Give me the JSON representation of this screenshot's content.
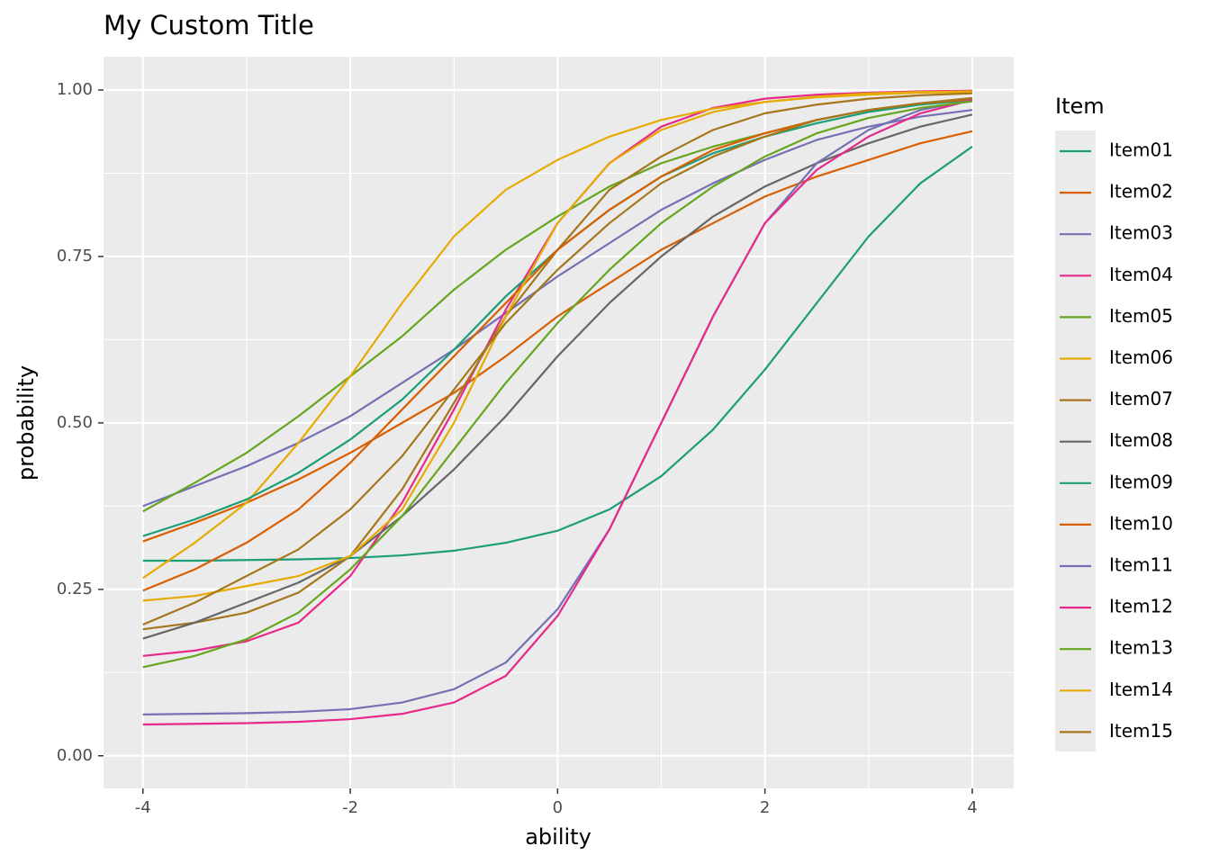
{
  "chart_data": {
    "type": "line",
    "title": "My Custom Title",
    "x_label": "ability",
    "y_label": "probability",
    "legend_title": "Item",
    "grid": true,
    "x": [
      -4,
      -3.5,
      -3,
      -2.5,
      -2,
      -1.5,
      -1,
      -0.5,
      0,
      0.5,
      1,
      1.5,
      2,
      2.5,
      3,
      3.5,
      4
    ],
    "xlim": [
      -4.38,
      4.4
    ],
    "xticks": [
      -4,
      -2,
      0,
      2,
      4
    ],
    "ylim": [
      -0.049,
      1.05
    ],
    "yticks": [
      {
        "value": 0,
        "label": "0.00"
      },
      {
        "value": 0.25,
        "label": "0.25"
      },
      {
        "value": 0.5,
        "label": "0.50"
      },
      {
        "value": 0.75,
        "label": "0.75"
      },
      {
        "value": 1,
        "label": "1.00"
      }
    ],
    "series": [
      {
        "name": "Item01",
        "color": "#1b9e77",
        "values": [
          0.293,
          0.293,
          0.294,
          0.295,
          0.297,
          0.301,
          0.308,
          0.32,
          0.338,
          0.37,
          0.42,
          0.49,
          0.58,
          0.68,
          0.78,
          0.86,
          0.915
        ]
      },
      {
        "name": "Item02",
        "color": "#d95f02",
        "values": [
          0.322,
          0.35,
          0.38,
          0.415,
          0.455,
          0.5,
          0.545,
          0.6,
          0.66,
          0.71,
          0.76,
          0.8,
          0.84,
          0.87,
          0.895,
          0.92,
          0.938
        ]
      },
      {
        "name": "Item03",
        "color": "#7570b3",
        "values": [
          0.375,
          0.405,
          0.435,
          0.47,
          0.51,
          0.56,
          0.61,
          0.665,
          0.72,
          0.77,
          0.82,
          0.86,
          0.895,
          0.925,
          0.945,
          0.96,
          0.97
        ]
      },
      {
        "name": "Item04",
        "color": "#e7298a",
        "values": [
          0.15,
          0.158,
          0.172,
          0.2,
          0.27,
          0.38,
          0.52,
          0.67,
          0.8,
          0.89,
          0.945,
          0.973,
          0.987,
          0.993,
          0.996,
          0.998,
          0.999
        ]
      },
      {
        "name": "Item05",
        "color": "#66a61e",
        "values": [
          0.367,
          0.41,
          0.455,
          0.51,
          0.57,
          0.63,
          0.7,
          0.76,
          0.81,
          0.855,
          0.89,
          0.915,
          0.935,
          0.955,
          0.97,
          0.98,
          0.985
        ]
      },
      {
        "name": "Item06",
        "color": "#e6ab02",
        "values": [
          0.267,
          0.32,
          0.38,
          0.47,
          0.57,
          0.68,
          0.78,
          0.85,
          0.895,
          0.93,
          0.955,
          0.972,
          0.982,
          0.989,
          0.993,
          0.996,
          0.997
        ]
      },
      {
        "name": "Item07",
        "color": "#a6761d",
        "values": [
          0.19,
          0.2,
          0.215,
          0.245,
          0.3,
          0.4,
          0.53,
          0.66,
          0.76,
          0.85,
          0.9,
          0.94,
          0.965,
          0.978,
          0.987,
          0.992,
          0.995
        ]
      },
      {
        "name": "Item08",
        "color": "#666666",
        "values": [
          0.176,
          0.2,
          0.23,
          0.26,
          0.3,
          0.36,
          0.43,
          0.51,
          0.6,
          0.68,
          0.75,
          0.81,
          0.855,
          0.89,
          0.92,
          0.945,
          0.963
        ]
      },
      {
        "name": "Item09",
        "color": "#1b9e77",
        "values": [
          0.33,
          0.355,
          0.385,
          0.425,
          0.475,
          0.535,
          0.61,
          0.69,
          0.76,
          0.82,
          0.87,
          0.905,
          0.93,
          0.95,
          0.967,
          0.978,
          0.985
        ]
      },
      {
        "name": "Item10",
        "color": "#d95f02",
        "values": [
          0.248,
          0.28,
          0.32,
          0.37,
          0.44,
          0.52,
          0.6,
          0.68,
          0.76,
          0.82,
          0.87,
          0.91,
          0.935,
          0.955,
          0.97,
          0.98,
          0.986
        ]
      },
      {
        "name": "Item11",
        "color": "#7570b3",
        "values": [
          0.062,
          0.063,
          0.064,
          0.066,
          0.07,
          0.08,
          0.1,
          0.14,
          0.22,
          0.34,
          0.5,
          0.66,
          0.8,
          0.89,
          0.94,
          0.97,
          0.985
        ]
      },
      {
        "name": "Item12",
        "color": "#e7298a",
        "values": [
          0.047,
          0.048,
          0.049,
          0.051,
          0.055,
          0.063,
          0.08,
          0.12,
          0.21,
          0.34,
          0.5,
          0.66,
          0.8,
          0.88,
          0.93,
          0.965,
          0.985
        ]
      },
      {
        "name": "Item13",
        "color": "#66a61e",
        "values": [
          0.133,
          0.15,
          0.175,
          0.215,
          0.28,
          0.36,
          0.46,
          0.56,
          0.65,
          0.73,
          0.8,
          0.855,
          0.9,
          0.935,
          0.958,
          0.973,
          0.983
        ]
      },
      {
        "name": "Item14",
        "color": "#e6ab02",
        "values": [
          0.233,
          0.24,
          0.255,
          0.27,
          0.3,
          0.37,
          0.5,
          0.66,
          0.8,
          0.89,
          0.94,
          0.967,
          0.982,
          0.99,
          0.995,
          0.997,
          0.998
        ]
      },
      {
        "name": "Item15",
        "color": "#a6761d",
        "values": [
          0.197,
          0.23,
          0.27,
          0.31,
          0.37,
          0.45,
          0.55,
          0.65,
          0.73,
          0.8,
          0.86,
          0.9,
          0.93,
          0.955,
          0.97,
          0.98,
          0.988
        ]
      }
    ]
  }
}
